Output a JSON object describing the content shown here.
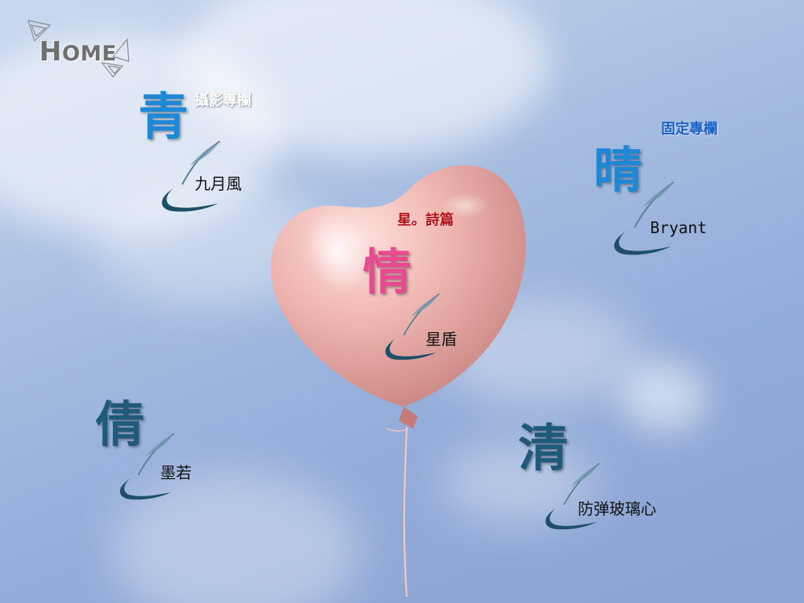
{
  "nav": {
    "home_label": "HOME"
  },
  "entries": {
    "top_left": {
      "glyph": "青",
      "section_label": "攝影專欄",
      "author": "九月風"
    },
    "top_right": {
      "glyph": "晴",
      "section_label": "固定專欄",
      "author": "Bryant"
    },
    "center": {
      "glyph": "情",
      "section_label": "星。詩篇",
      "author": "星盾"
    },
    "bottom_left": {
      "glyph": "倩",
      "author": "墨若"
    },
    "bottom_right": {
      "glyph": "清",
      "author": "防弹玻璃心"
    }
  },
  "colors": {
    "sky": "#93acd9",
    "glyph_blue": "#1e88d6",
    "glyph_teal": "#1f5a7a",
    "glyph_pink": "#e64b8f",
    "label_red": "#b31217",
    "label_blue": "#1c63c9",
    "balloon": "#f0b7b2"
  },
  "icons": [
    "home-logo-icon",
    "reed-brush-icon",
    "heart-balloon-icon"
  ]
}
